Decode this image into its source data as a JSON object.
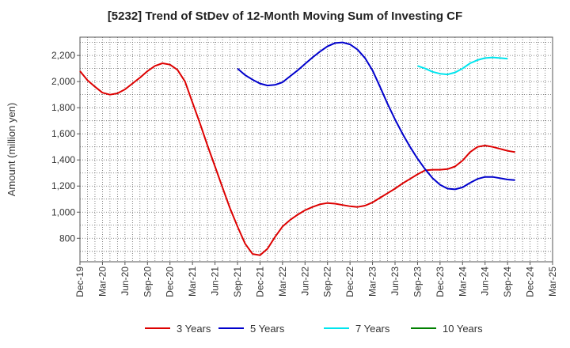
{
  "chart_data": {
    "type": "line",
    "title": "[5232]  Trend of StDev of 12-Month Moving Sum of Investing CF",
    "ylabel": "Amount (million yen)",
    "xlabel": "",
    "ylim": [
      620,
      2340
    ],
    "yticks": [
      800,
      1000,
      1200,
      1400,
      1600,
      1800,
      2000,
      2200
    ],
    "ytick_labels": [
      "800",
      "1,000",
      "1,200",
      "1,400",
      "1,600",
      "1,800",
      "2,000",
      "2,200"
    ],
    "x_categories": [
      "Dec-19",
      "Mar-20",
      "Jun-20",
      "Sep-20",
      "Dec-20",
      "Mar-21",
      "Jun-21",
      "Sep-21",
      "Dec-21",
      "Mar-22",
      "Jun-22",
      "Sep-22",
      "Dec-22",
      "Mar-23",
      "Jun-23",
      "Sep-23",
      "Dec-23",
      "Mar-24",
      "Jun-24",
      "Sep-24",
      "Dec-24",
      "Mar-25"
    ],
    "grid": true,
    "legend_position": "bottom",
    "series": [
      {
        "name": "3 Years",
        "color": "#dd0000",
        "start_index": 0,
        "values": [
          2080,
          2010,
          1960,
          1915,
          1900,
          1910,
          1940,
          1985,
          2030,
          2080,
          2120,
          2140,
          2130,
          2090,
          2000,
          1840,
          1680,
          1510,
          1350,
          1190,
          1030,
          890,
          760,
          680,
          670,
          720,
          810,
          890,
          940,
          980,
          1015,
          1040,
          1060,
          1070,
          1065,
          1055,
          1045,
          1040,
          1050,
          1075,
          1110,
          1145,
          1180,
          1220,
          1255,
          1290,
          1320,
          1325,
          1325,
          1330,
          1350,
          1395,
          1460,
          1500,
          1510,
          1500,
          1485,
          1470,
          1460
        ]
      },
      {
        "name": "5 Years",
        "color": "#0000cc",
        "start_index": 21,
        "values": [
          2100,
          2050,
          2015,
          1985,
          1970,
          1975,
          1995,
          2040,
          2085,
          2135,
          2185,
          2230,
          2270,
          2295,
          2300,
          2285,
          2245,
          2180,
          2085,
          1960,
          1830,
          1710,
          1600,
          1500,
          1410,
          1330,
          1260,
          1210,
          1180,
          1175,
          1190,
          1225,
          1255,
          1270,
          1270,
          1260,
          1250,
          1245
        ]
      },
      {
        "name": "7 Years",
        "color": "#00e5ee",
        "start_index": 45,
        "values": [
          2120,
          2100,
          2075,
          2060,
          2055,
          2070,
          2100,
          2140,
          2165,
          2180,
          2185,
          2180,
          2175
        ]
      },
      {
        "name": "10 Years",
        "color": "#008000",
        "start_index": 0,
        "values": []
      }
    ]
  }
}
